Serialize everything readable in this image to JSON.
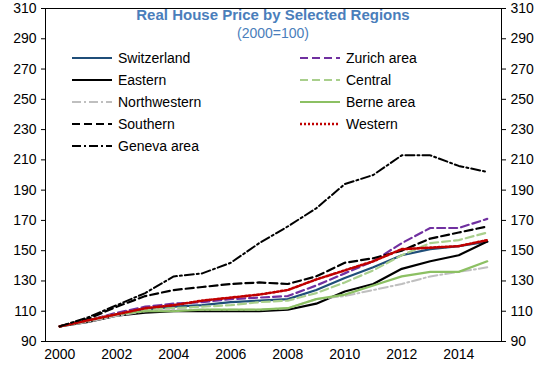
{
  "chart_data": {
    "type": "line",
    "title": "Real House Price by Selected Regions",
    "subtitle": "(2000=100)",
    "x": [
      2000,
      2001,
      2002,
      2003,
      2004,
      2005,
      2006,
      2007,
      2008,
      2009,
      2010,
      2011,
      2012,
      2013,
      2014,
      2015
    ],
    "xlim": [
      1999.5,
      2015.5
    ],
    "xticks": [
      2000,
      2002,
      2004,
      2006,
      2008,
      2010,
      2012,
      2014
    ],
    "ylim": [
      90,
      310
    ],
    "yticks": [
      90,
      110,
      130,
      150,
      170,
      190,
      210,
      230,
      250,
      270,
      290,
      310
    ],
    "grid": false,
    "legend": "top-left",
    "series": [
      {
        "name": "Switzerland",
        "color": "#1f4e79",
        "line_style": "solid",
        "values": [
          100,
          104,
          108,
          111,
          113,
          114,
          116,
          117,
          118,
          124,
          132,
          139,
          147,
          151,
          153,
          156
        ]
      },
      {
        "name": "Zurich area",
        "color": "#7030a0",
        "line_style": "dashed",
        "values": [
          100,
          104,
          109,
          113,
          115,
          116,
          118,
          119,
          120,
          127,
          135,
          143,
          155,
          165,
          165,
          171
        ]
      },
      {
        "name": "Eastern",
        "color": "#000000",
        "line_style": "solid",
        "values": [
          100,
          103,
          107,
          109,
          110,
          110,
          110,
          110,
          111,
          115,
          123,
          128,
          138,
          143,
          147,
          156
        ]
      },
      {
        "name": "Central",
        "color": "#a9cf8c",
        "line_style": "dashed",
        "values": [
          100,
          104,
          108,
          111,
          112,
          113,
          114,
          116,
          117,
          122,
          129,
          137,
          147,
          155,
          157,
          162
        ]
      },
      {
        "name": "Northwestern",
        "color": "#bfbfbf",
        "line_style": "dashdot",
        "values": [
          100,
          103,
          107,
          110,
          111,
          111,
          111,
          111,
          112,
          118,
          120,
          124,
          128,
          133,
          136,
          139
        ]
      },
      {
        "name": "Berne area",
        "color": "#8cc063",
        "line_style": "solid",
        "values": [
          100,
          104,
          108,
          110,
          110,
          111,
          111,
          111,
          112,
          118,
          121,
          127,
          133,
          136,
          136,
          143
        ]
      },
      {
        "name": "Southern",
        "color": "#000000",
        "line_style": "dashed",
        "values": [
          100,
          105,
          113,
          120,
          124,
          126,
          128,
          129,
          128,
          133,
          142,
          145,
          150,
          158,
          162,
          166
        ]
      },
      {
        "name": "Western",
        "color": "#c00000",
        "line_style": "dotted",
        "values": [
          100,
          104,
          108,
          112,
          114,
          117,
          119,
          121,
          124,
          131,
          137,
          143,
          151,
          152,
          153,
          157
        ]
      },
      {
        "name": "Geneva area",
        "color": "#000000",
        "line_style": "dashdot",
        "values": [
          100,
          106,
          114,
          122,
          133,
          135,
          142,
          155,
          166,
          178,
          194,
          200,
          213,
          213,
          206,
          202
        ]
      }
    ]
  }
}
